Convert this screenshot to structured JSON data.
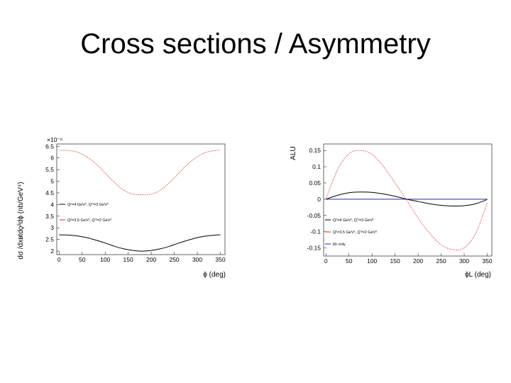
{
  "slide": {
    "title": "Cross sections / Asymmetry"
  },
  "chart_data": [
    {
      "type": "line",
      "title": "",
      "xlabel": "ϕ (deg)",
      "ylabel": "dσ /dxᴃtdǫ²dϕ (nb/GeV⁴)",
      "exponent_label": "×10⁻⁶",
      "xlim": [
        -5,
        360
      ],
      "ylim": [
        1.85,
        6.6
      ],
      "xticks": [
        0,
        50,
        100,
        150,
        200,
        250,
        300,
        350
      ],
      "yticks": [
        "2",
        "2.5",
        "3",
        "3.5",
        "4",
        "4.5",
        "5",
        "5.5",
        "6",
        "6.5"
      ],
      "legend_position": "left",
      "series": [
        {
          "name": "Q²=4 GeV², Q'²=3 GeV²",
          "color": "#000000",
          "style": "solid",
          "x": [
            0,
            20,
            40,
            60,
            80,
            100,
            120,
            140,
            160,
            180,
            200,
            220,
            240,
            260,
            280,
            300,
            320,
            340,
            350
          ],
          "y": [
            2.7,
            2.69,
            2.65,
            2.58,
            2.47,
            2.35,
            2.21,
            2.1,
            2.03,
            2.0,
            2.03,
            2.1,
            2.21,
            2.35,
            2.47,
            2.58,
            2.65,
            2.69,
            2.7
          ]
        },
        {
          "name": "Q²=3.5 GeV², Q'²=2 GeV²",
          "color": "#e0281c",
          "style": "dotted",
          "x": [
            0,
            20,
            40,
            60,
            80,
            100,
            120,
            140,
            160,
            180,
            200,
            220,
            240,
            260,
            280,
            300,
            320,
            340,
            350
          ],
          "y": [
            6.33,
            6.32,
            6.25,
            6.05,
            5.75,
            5.35,
            4.95,
            4.62,
            4.45,
            4.42,
            4.45,
            4.62,
            4.95,
            5.35,
            5.75,
            6.05,
            6.25,
            6.32,
            6.33
          ]
        }
      ]
    },
    {
      "type": "line",
      "title": "",
      "xlabel": "ϕL (deg)",
      "ylabel": "ALU",
      "xlim": [
        -5,
        360
      ],
      "ylim": [
        -0.175,
        0.17
      ],
      "xticks": [
        0,
        50,
        100,
        150,
        200,
        250,
        300,
        350
      ],
      "yticks": [
        "-0.15",
        "-0.1",
        "-0.05",
        "0",
        "0.05",
        "0.1",
        "0.15"
      ],
      "legend_position": "bottom-left",
      "series": [
        {
          "name": "Q²=4 GeV², Q'²=3 GeV²",
          "color": "#000000",
          "style": "solid",
          "x": [
            0,
            25,
            50,
            75,
            100,
            125,
            150,
            175,
            200,
            225,
            250,
            275,
            300,
            325,
            350
          ],
          "y": [
            0.0,
            0.012,
            0.02,
            0.022,
            0.021,
            0.016,
            0.009,
            0.0,
            -0.007,
            -0.014,
            -0.019,
            -0.021,
            -0.02,
            -0.014,
            -0.001
          ]
        },
        {
          "name": "Q²=3.5 GeV², Q'²=2 GeV²",
          "color": "#e0281c",
          "style": "dotted",
          "x": [
            0,
            25,
            50,
            75,
            100,
            125,
            150,
            175,
            200,
            225,
            250,
            275,
            300,
            325,
            350
          ],
          "y": [
            0.0,
            0.09,
            0.14,
            0.15,
            0.138,
            0.1,
            0.05,
            -0.003,
            -0.058,
            -0.105,
            -0.14,
            -0.155,
            -0.15,
            -0.105,
            -0.012
          ]
        },
        {
          "name": "bh only",
          "color": "#1f2aa8",
          "style": "solid",
          "x": [
            0,
            350
          ],
          "y": [
            0.0,
            0.0
          ]
        }
      ]
    }
  ]
}
